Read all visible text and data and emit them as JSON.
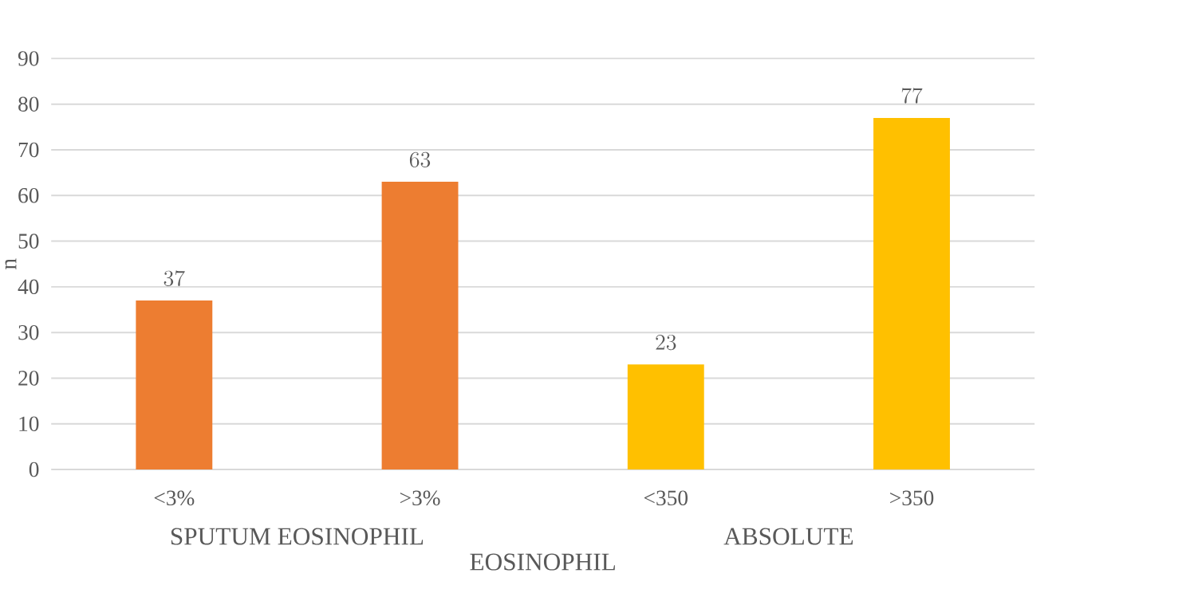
{
  "chart_data": {
    "type": "bar",
    "xlabel": "EOSINOPHIL",
    "ylabel": "n",
    "categories": [
      "<3%",
      ">3%",
      "<350",
      ">350"
    ],
    "values": [
      37,
      63,
      23,
      77
    ],
    "colors": [
      "#ed7d31",
      "#ed7d31",
      "#ffc000",
      "#ffc000"
    ],
    "ylim": [
      0,
      90
    ],
    "yticks": [
      0,
      10,
      20,
      30,
      40,
      50,
      60,
      70,
      80,
      90
    ],
    "grid": "y",
    "data_labels": true,
    "annotations": [
      "SPUTUM EOSINOPHIL",
      "ABSOLUTE"
    ]
  }
}
